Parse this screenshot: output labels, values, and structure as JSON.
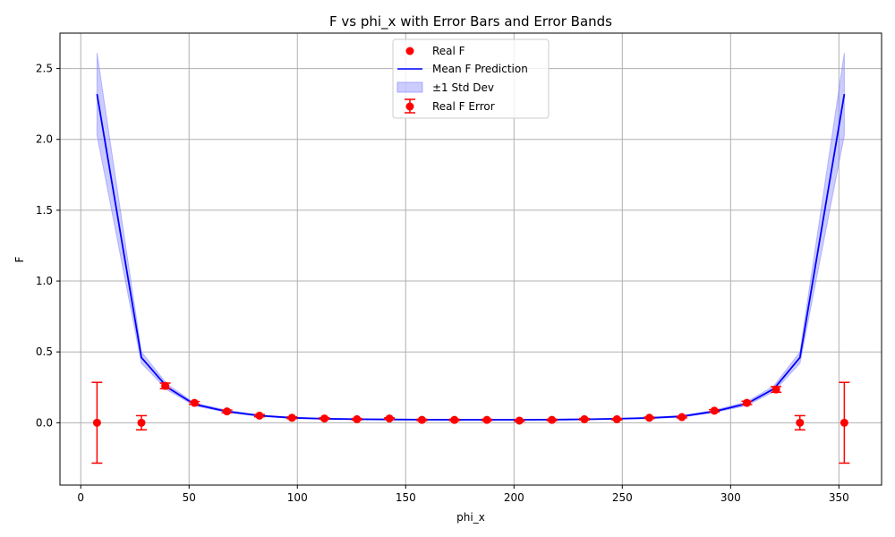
{
  "chart_data": {
    "type": "line",
    "title": "F vs phi_x with Error Bars and Error Bands",
    "xlabel": "phi_x",
    "ylabel": "F",
    "xlim": [
      -9.6,
      369.7
    ],
    "ylim": [
      -0.44,
      2.75
    ],
    "xticks": [
      0,
      50,
      100,
      150,
      200,
      250,
      300,
      350
    ],
    "yticks": [
      0.0,
      0.5,
      1.0,
      1.5,
      2.0,
      2.5
    ],
    "xtick_labels": [
      "0",
      "50",
      "100",
      "150",
      "200",
      "250",
      "300",
      "350"
    ],
    "ytick_labels": [
      "0.0",
      "0.5",
      "1.0",
      "1.5",
      "2.0",
      "2.5"
    ],
    "grid": true,
    "legend_position": "top-center",
    "legend": [
      {
        "key": "real_points",
        "label": "Real F"
      },
      {
        "key": "mean_prediction",
        "label": "Mean F Prediction"
      },
      {
        "key": "band",
        "label": "±1 Std Dev"
      },
      {
        "key": "error_bars",
        "label": "Real F Error"
      }
    ],
    "colors": {
      "real": "#ff0000",
      "mean": "#0000ff",
      "band": "#8080ff"
    },
    "prediction": {
      "name": "Mean F Prediction",
      "x": [
        7.5,
        28,
        40,
        52.5,
        67.5,
        82.5,
        97.5,
        112.5,
        127.5,
        142.5,
        157.5,
        172.5,
        187.5,
        202.5,
        217.5,
        232.5,
        247.5,
        262.5,
        277.5,
        292.5,
        307.5,
        320,
        332,
        352.5
      ],
      "mean": [
        2.32,
        0.46,
        0.25,
        0.13,
        0.08,
        0.05,
        0.035,
        0.028,
        0.025,
        0.023,
        0.022,
        0.021,
        0.021,
        0.021,
        0.022,
        0.024,
        0.028,
        0.034,
        0.045,
        0.08,
        0.135,
        0.24,
        0.46,
        2.32
      ],
      "lower": [
        2.03,
        0.42,
        0.23,
        0.12,
        0.072,
        0.045,
        0.031,
        0.025,
        0.022,
        0.021,
        0.02,
        0.019,
        0.019,
        0.019,
        0.02,
        0.022,
        0.025,
        0.03,
        0.04,
        0.072,
        0.122,
        0.22,
        0.42,
        2.03
      ],
      "upper": [
        2.61,
        0.5,
        0.27,
        0.14,
        0.088,
        0.055,
        0.039,
        0.031,
        0.028,
        0.025,
        0.024,
        0.023,
        0.023,
        0.023,
        0.024,
        0.026,
        0.031,
        0.038,
        0.05,
        0.088,
        0.148,
        0.26,
        0.5,
        2.61
      ]
    },
    "real": {
      "name": "Real F",
      "x": [
        7.5,
        28,
        39,
        52.5,
        67.5,
        82.5,
        97.5,
        112.5,
        127.5,
        142.5,
        157.5,
        172.5,
        187.5,
        202.5,
        217.5,
        232.5,
        247.5,
        262.5,
        277.5,
        292.5,
        307.5,
        321,
        332,
        352.5
      ],
      "y": [
        0.0,
        0.0,
        0.26,
        0.14,
        0.08,
        0.05,
        0.035,
        0.03,
        0.025,
        0.03,
        0.02,
        0.02,
        0.02,
        0.015,
        0.02,
        0.025,
        0.025,
        0.035,
        0.04,
        0.085,
        0.14,
        0.235,
        0.0,
        0.0
      ],
      "err": [
        0.285,
        0.05,
        0.02,
        0.01,
        0.01,
        0.008,
        0.006,
        0.005,
        0.005,
        0.005,
        0.005,
        0.005,
        0.005,
        0.005,
        0.005,
        0.005,
        0.005,
        0.005,
        0.006,
        0.008,
        0.012,
        0.02,
        0.05,
        0.285
      ]
    }
  }
}
